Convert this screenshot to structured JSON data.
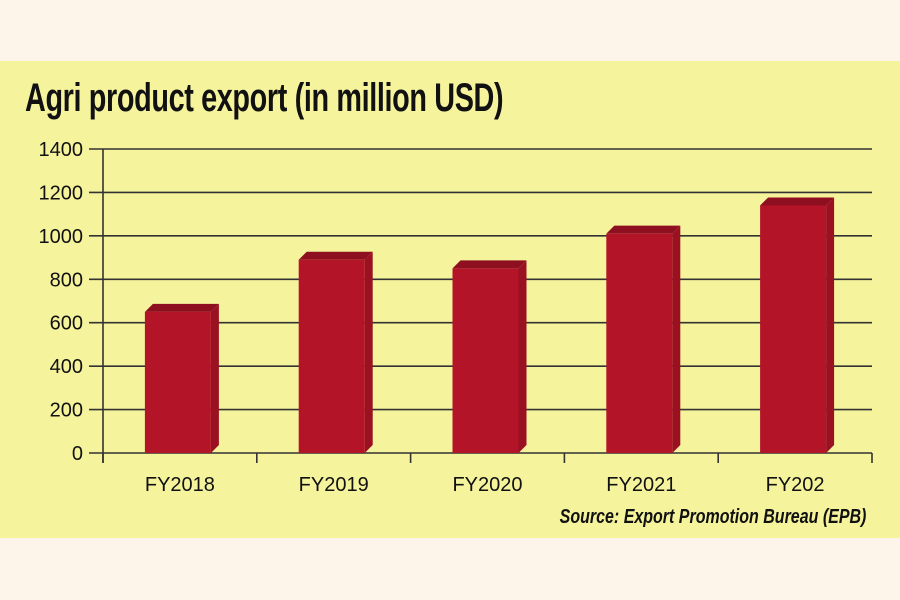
{
  "chart_data": {
    "type": "bar",
    "title": "Agri product export (in million USD)",
    "categories": [
      "FY2018",
      "FY2019",
      "FY2020",
      "FY2021",
      "FY202"
    ],
    "values": [
      650,
      890,
      850,
      1010,
      1140
    ],
    "ylim": [
      0,
      1400
    ],
    "yticks": [
      "0",
      "200",
      "400",
      "600",
      "800",
      "1000",
      "1200",
      "1400"
    ],
    "grid": true,
    "legend": "none",
    "source": "Source: Export Promotion Bureau (EPB)",
    "colors": {
      "bar": "#b31428",
      "bar_top": "#8e1020",
      "background": "#f6f39d"
    }
  }
}
